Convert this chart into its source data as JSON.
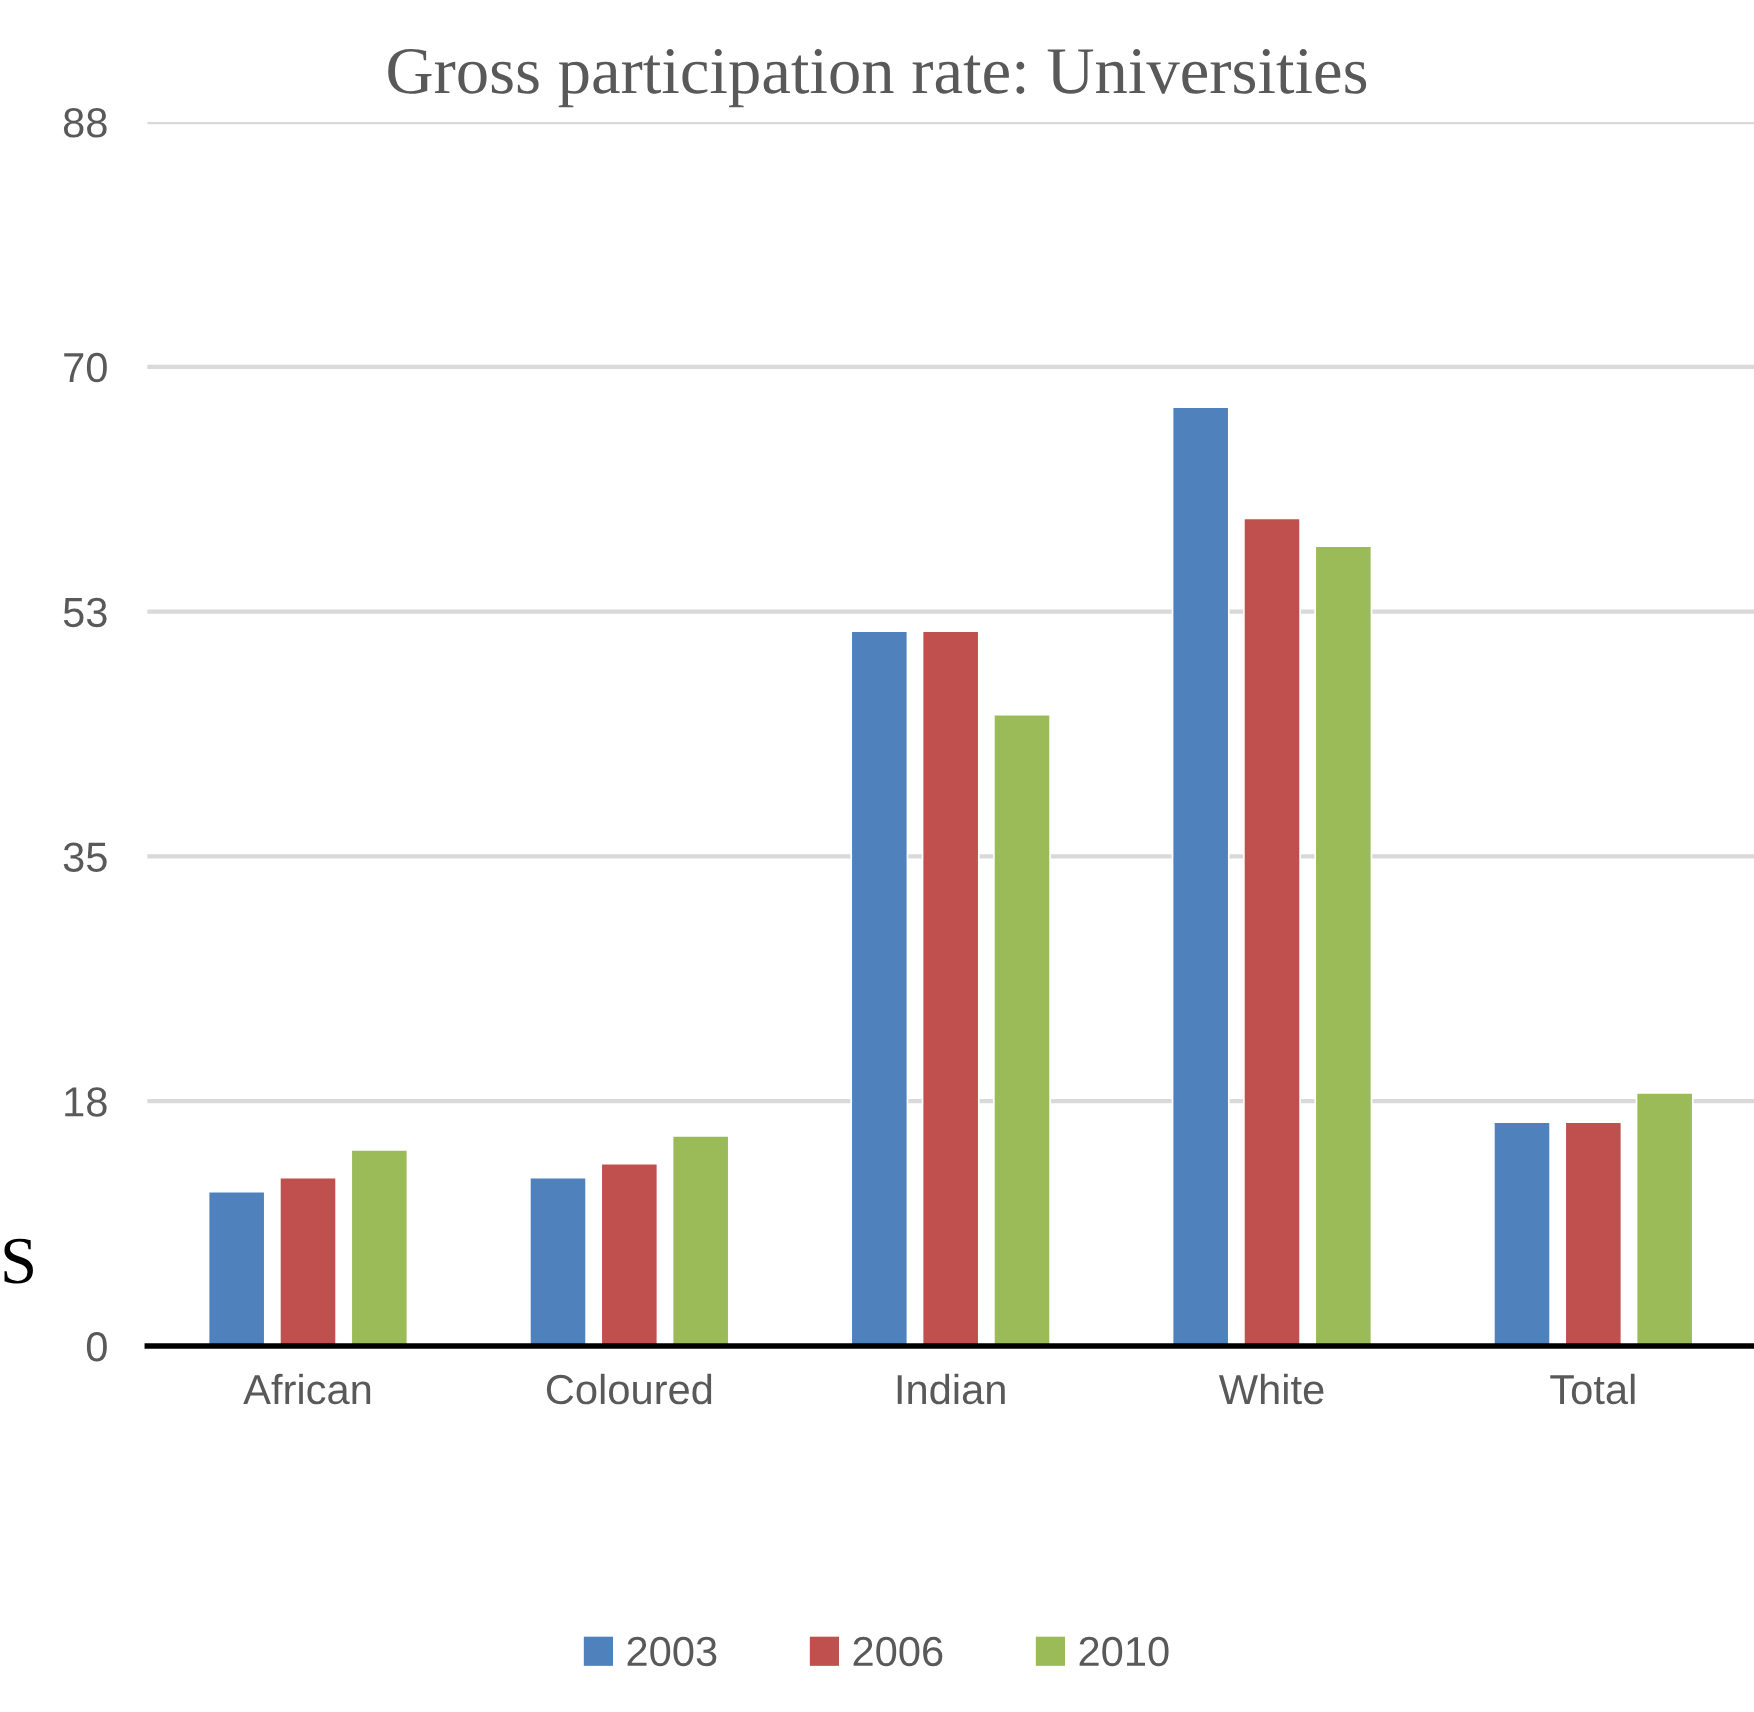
{
  "chart_data": {
    "type": "bar",
    "title": "Gross participation rate: Universities",
    "categories": [
      "African",
      "Coloured",
      "Indian",
      "White",
      "Total"
    ],
    "series": [
      {
        "name": "2003",
        "color": "#4f81bd",
        "values": [
          11.1,
          12.1,
          51.4,
          67.5,
          16.1
        ]
      },
      {
        "name": "2006",
        "color": "#c0504d",
        "values": [
          12.1,
          13.1,
          51.4,
          59.5,
          16.1
        ]
      },
      {
        "name": "2010",
        "color": "#9bbb59",
        "values": [
          14.1,
          15.1,
          45.4,
          57.5,
          18.2
        ]
      }
    ],
    "ylim": [
      0,
      88
    ],
    "yticks": [
      0,
      {
        "value": 17.6,
        "label": "18"
      },
      {
        "value": 35.2,
        "label": "35"
      },
      {
        "value": 52.8,
        "label": "53"
      },
      {
        "value": 70.4,
        "label": "70"
      },
      88
    ],
    "grid": "y",
    "legend": "bottom",
    "annotations": [
      "S"
    ]
  }
}
